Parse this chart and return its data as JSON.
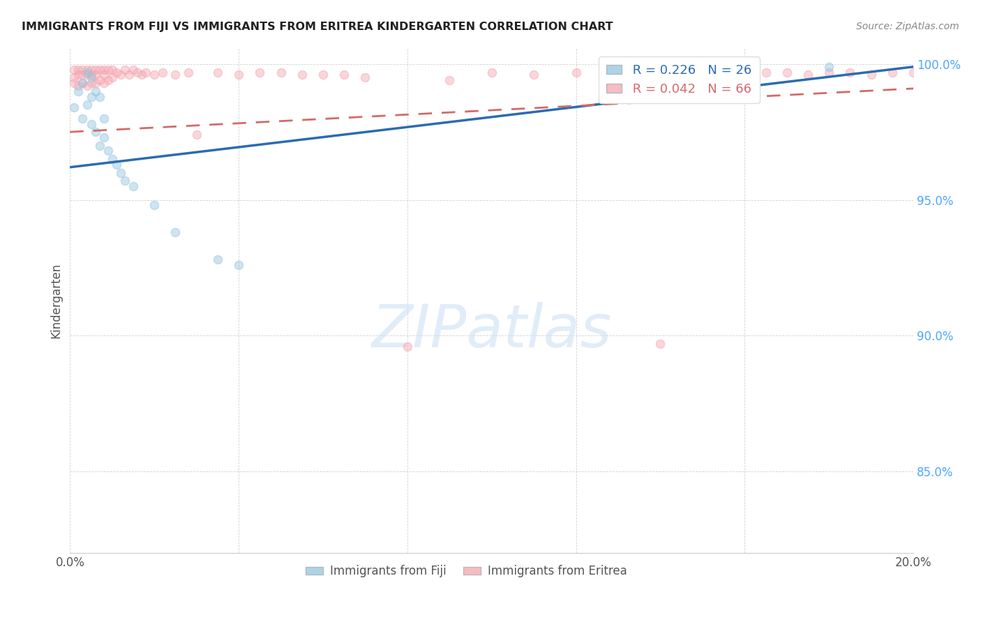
{
  "title": "IMMIGRANTS FROM FIJI VS IMMIGRANTS FROM ERITREA KINDERGARTEN CORRELATION CHART",
  "source": "Source: ZipAtlas.com",
  "ylabel_label": "Kindergarten",
  "xlim": [
    0.0,
    0.2
  ],
  "ylim": [
    0.82,
    1.006
  ],
  "xtick_positions": [
    0.0,
    0.04,
    0.08,
    0.12,
    0.16,
    0.2
  ],
  "xticklabels": [
    "0.0%",
    "",
    "",
    "",
    "",
    "20.0%"
  ],
  "ytick_positions": [
    0.85,
    0.9,
    0.95,
    1.0
  ],
  "yticklabels": [
    "85.0%",
    "90.0%",
    "95.0%",
    "100.0%"
  ],
  "fiji_color": "#92c5de",
  "eritrea_color": "#f4a6b0",
  "fiji_line_color": "#2b6cb0",
  "eritrea_line_color": "#d46a6a",
  "legend_R_fiji": "R = 0.226",
  "legend_N_fiji": "N = 26",
  "legend_R_eritrea": "R = 0.042",
  "legend_N_eritrea": "N = 66",
  "fiji_points_x": [
    0.001,
    0.002,
    0.003,
    0.003,
    0.004,
    0.004,
    0.005,
    0.005,
    0.005,
    0.006,
    0.006,
    0.007,
    0.007,
    0.008,
    0.008,
    0.009,
    0.01,
    0.011,
    0.012,
    0.013,
    0.015,
    0.02,
    0.025,
    0.035,
    0.04,
    0.18
  ],
  "fiji_points_y": [
    0.984,
    0.99,
    0.98,
    0.993,
    0.985,
    0.997,
    0.978,
    0.988,
    0.995,
    0.975,
    0.99,
    0.97,
    0.988,
    0.973,
    0.98,
    0.968,
    0.965,
    0.963,
    0.96,
    0.957,
    0.955,
    0.948,
    0.938,
    0.928,
    0.926,
    0.999
  ],
  "eritrea_points_x": [
    0.001,
    0.001,
    0.001,
    0.002,
    0.002,
    0.002,
    0.003,
    0.003,
    0.003,
    0.004,
    0.004,
    0.004,
    0.005,
    0.005,
    0.005,
    0.006,
    0.006,
    0.006,
    0.007,
    0.007,
    0.008,
    0.008,
    0.008,
    0.009,
    0.009,
    0.01,
    0.01,
    0.011,
    0.012,
    0.013,
    0.014,
    0.015,
    0.016,
    0.017,
    0.018,
    0.02,
    0.022,
    0.025,
    0.028,
    0.03,
    0.035,
    0.04,
    0.045,
    0.05,
    0.055,
    0.06,
    0.065,
    0.07,
    0.08,
    0.09,
    0.1,
    0.11,
    0.12,
    0.13,
    0.14,
    0.15,
    0.155,
    0.16,
    0.165,
    0.17,
    0.175,
    0.18,
    0.185,
    0.19,
    0.195,
    0.2
  ],
  "eritrea_points_y": [
    0.998,
    0.995,
    0.993,
    0.998,
    0.996,
    0.992,
    0.998,
    0.996,
    0.993,
    0.998,
    0.996,
    0.992,
    0.998,
    0.996,
    0.993,
    0.998,
    0.996,
    0.993,
    0.998,
    0.994,
    0.998,
    0.996,
    0.993,
    0.998,
    0.994,
    0.998,
    0.995,
    0.997,
    0.996,
    0.998,
    0.996,
    0.998,
    0.997,
    0.996,
    0.997,
    0.996,
    0.997,
    0.996,
    0.997,
    0.974,
    0.997,
    0.996,
    0.997,
    0.997,
    0.996,
    0.996,
    0.996,
    0.995,
    0.896,
    0.994,
    0.997,
    0.996,
    0.997,
    0.997,
    0.897,
    0.997,
    0.997,
    0.996,
    0.997,
    0.997,
    0.996,
    0.997,
    0.997,
    0.996,
    0.997,
    0.997
  ],
  "marker_size": 75,
  "marker_alpha": 0.45,
  "background_color": "#ffffff",
  "grid_color": "#cccccc",
  "fiji_trendline_x": [
    0.0,
    0.2
  ],
  "fiji_trendline_y": [
    0.962,
    0.999
  ],
  "eritrea_trendline_x": [
    0.0,
    0.2
  ],
  "eritrea_trendline_y": [
    0.975,
    0.991
  ],
  "watermark_text": "ZIPatlas"
}
